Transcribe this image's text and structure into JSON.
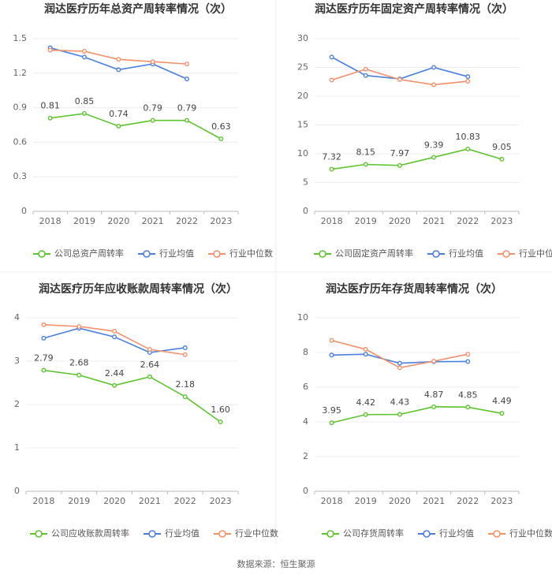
{
  "chart_data": [
    {
      "type": "line",
      "title": "润达医疗历年总资产周转率情况（次）",
      "categories": [
        "2018",
        "2019",
        "2020",
        "2021",
        "2022",
        "2023"
      ],
      "ylim": [
        0,
        1.5
      ],
      "yticks": [
        0,
        0.3,
        0.6,
        0.9,
        1.2,
        1.5
      ],
      "grid": true,
      "series": [
        {
          "name": "公司总资产周转率",
          "color": "#5cc42c",
          "values": [
            0.81,
            0.85,
            0.74,
            0.79,
            0.79,
            0.63
          ]
        },
        {
          "name": "行业均值",
          "color": "#4a7fe0",
          "values": [
            1.42,
            1.34,
            1.23,
            1.28,
            1.15,
            null
          ]
        },
        {
          "name": "行业中位数",
          "color": "#f4906a",
          "values": [
            1.4,
            1.39,
            1.32,
            1.3,
            1.28,
            null
          ]
        }
      ]
    },
    {
      "type": "line",
      "title": "润达医疗历年固定资产周转率情况（次）",
      "categories": [
        "2018",
        "2019",
        "2020",
        "2021",
        "2022",
        "2023"
      ],
      "ylim": [
        0,
        30
      ],
      "yticks": [
        0,
        5,
        10,
        15,
        20,
        25,
        30
      ],
      "grid": true,
      "series": [
        {
          "name": "公司固定资产周转率",
          "color": "#5cc42c",
          "values": [
            7.32,
            8.15,
            7.97,
            9.39,
            10.83,
            9.05
          ]
        },
        {
          "name": "行业均值",
          "color": "#4a7fe0",
          "values": [
            26.8,
            23.6,
            23.0,
            25.0,
            23.4,
            null
          ]
        },
        {
          "name": "行业中位数",
          "color": "#f4906a",
          "values": [
            22.8,
            24.7,
            22.9,
            22.0,
            22.6,
            null
          ]
        }
      ]
    },
    {
      "type": "line",
      "title": "润达医疗历年应收账款周转率情况（次）",
      "categories": [
        "2018",
        "2019",
        "2020",
        "2021",
        "2022",
        "2023"
      ],
      "ylim": [
        0,
        4
      ],
      "yticks": [
        0,
        1,
        2,
        3,
        4
      ],
      "grid": true,
      "series": [
        {
          "name": "公司应收账款周转率",
          "color": "#5cc42c",
          "values": [
            2.79,
            2.68,
            2.44,
            2.64,
            2.18,
            1.6
          ],
          "value_labels": [
            "2.79",
            "2.68",
            "2.44",
            "2.64",
            "2.18",
            "1.60"
          ]
        },
        {
          "name": "行业均值",
          "color": "#4a7fe0",
          "values": [
            3.53,
            3.76,
            3.56,
            3.2,
            3.31,
            null
          ]
        },
        {
          "name": "行业中位数",
          "color": "#f4906a",
          "values": [
            3.84,
            3.8,
            3.69,
            3.27,
            3.15,
            null
          ]
        }
      ]
    },
    {
      "type": "line",
      "title": "润达医疗历年存货周转率情况（次）",
      "categories": [
        "2018",
        "2019",
        "2020",
        "2021",
        "2022",
        "2023"
      ],
      "ylim": [
        0,
        10
      ],
      "yticks": [
        0,
        2,
        4,
        6,
        8,
        10
      ],
      "grid": true,
      "series": [
        {
          "name": "公司存货周转率",
          "color": "#5cc42c",
          "values": [
            3.95,
            4.42,
            4.43,
            4.87,
            4.85,
            4.49
          ]
        },
        {
          "name": "行业均值",
          "color": "#4a7fe0",
          "values": [
            7.85,
            7.9,
            7.38,
            7.47,
            7.48,
            null
          ]
        },
        {
          "name": "行业中位数",
          "color": "#f4906a",
          "values": [
            8.7,
            8.18,
            7.12,
            7.5,
            7.9,
            null
          ]
        }
      ]
    }
  ],
  "source": "数据来源：恒生聚源"
}
